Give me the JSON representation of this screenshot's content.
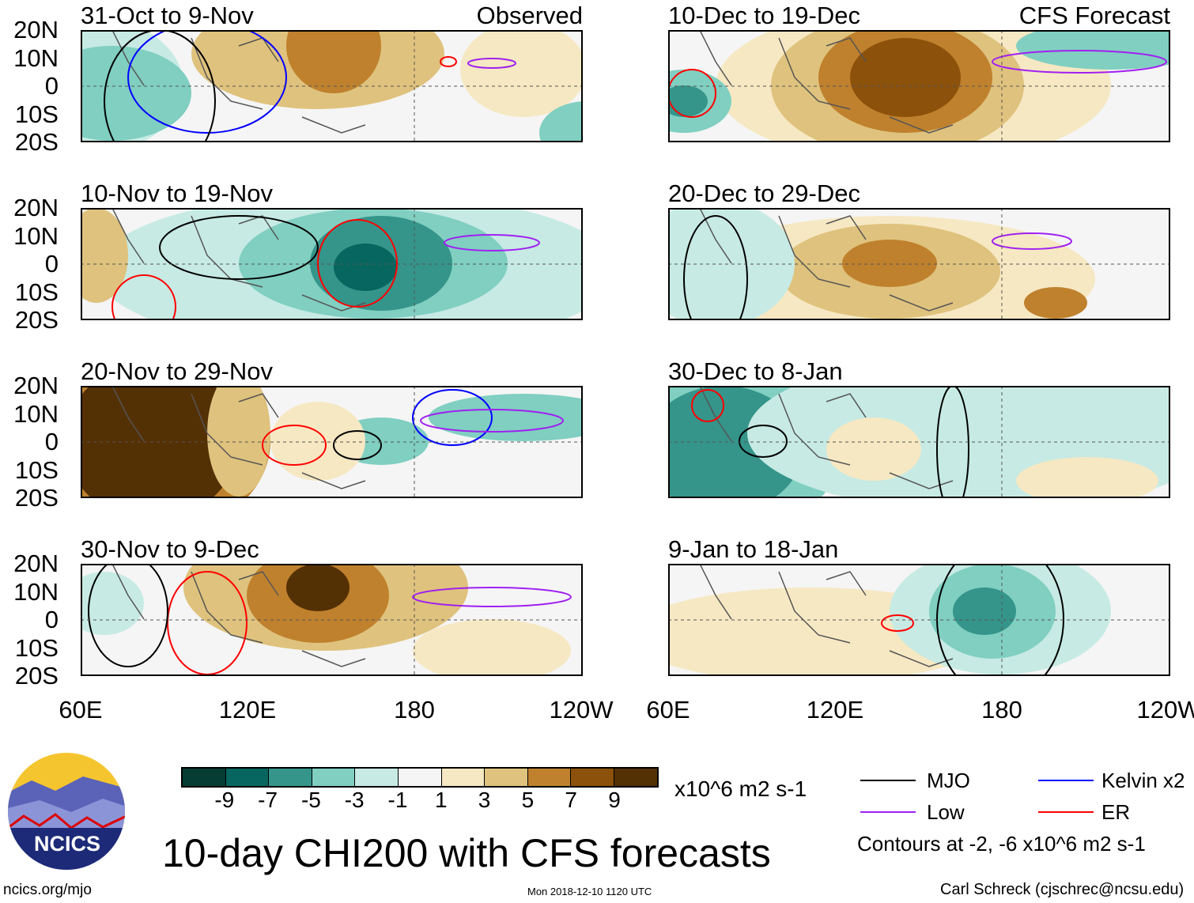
{
  "title": "10-day CHI200 with CFS forecasts",
  "source": "ncics.org/mjo",
  "timestamp": "Mon 2018-12-10 1120 UTC",
  "author": "Carl Schreck (cjschrec@ncsu.edu)",
  "logo_text": "NCICS",
  "chart_data": {
    "type": "heatmap",
    "title": "10-day CHI200 with CFS forecasts",
    "units": "x10^6 m2 s-1",
    "lat_ticks": [
      "20N",
      "10N",
      "0",
      "10S",
      "20S"
    ],
    "lon_ticks": [
      "60E",
      "120E",
      "180",
      "120W"
    ],
    "ylim": [
      -20,
      20
    ],
    "xlim": [
      60,
      240
    ],
    "colorbar": {
      "ticks": [
        "-9",
        "-7",
        "-5",
        "-3",
        "-1",
        "1",
        "3",
        "5",
        "7",
        "9"
      ],
      "colors": [
        "#053d35",
        "#076660",
        "#35958a",
        "#80cfc1",
        "#c7eae4",
        "#f5f5f5",
        "#f6e8c3",
        "#dfc27d",
        "#bf812d",
        "#8c510a",
        "#543005"
      ]
    },
    "panels": [
      {
        "title": "31-Oct to 9-Nov",
        "label": "Observed"
      },
      {
        "title": "10-Nov to 19-Nov",
        "label": ""
      },
      {
        "title": "20-Nov to 29-Nov",
        "label": ""
      },
      {
        "title": "30-Nov to 9-Dec",
        "label": ""
      },
      {
        "title": "10-Dec to 19-Dec",
        "label": "CFS Forecast"
      },
      {
        "title": "20-Dec to 29-Dec",
        "label": ""
      },
      {
        "title": "30-Dec to 8-Jan",
        "label": ""
      },
      {
        "title": "9-Jan to 18-Jan",
        "label": ""
      }
    ],
    "legend": [
      {
        "name": "MJO",
        "color": "#000000"
      },
      {
        "name": "Kelvin x2",
        "color": "#0000ff"
      },
      {
        "name": "Low",
        "color": "#a020f0"
      },
      {
        "name": "ER",
        "color": "#ff0000"
      }
    ],
    "contour_note": "Contours at -2, -6 x10^6 m2 s-1"
  }
}
